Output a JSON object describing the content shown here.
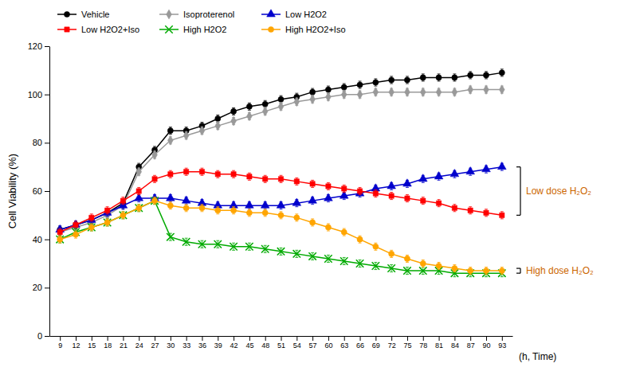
{
  "chart_data": {
    "type": "line",
    "x": [
      9,
      12,
      15,
      18,
      21,
      24,
      27,
      30,
      33,
      36,
      39,
      42,
      45,
      48,
      51,
      54,
      57,
      60,
      63,
      66,
      69,
      72,
      75,
      78,
      81,
      84,
      87,
      90,
      93
    ],
    "xlim": [
      7,
      95
    ],
    "xticks": [
      9,
      12,
      15,
      18,
      21,
      24,
      27,
      30,
      33,
      36,
      39,
      42,
      45,
      48,
      51,
      54,
      57,
      60,
      63,
      66,
      69,
      72,
      75,
      78,
      81,
      84,
      87,
      90,
      93
    ],
    "xlabel": "(h, Time)",
    "ylabel": "Cell Viability (%)",
    "ylim": [
      0,
      120
    ],
    "yticks": [
      0,
      20,
      40,
      60,
      80,
      100,
      120
    ],
    "grid": false,
    "legend": "upper left",
    "series": [
      {
        "name": "Vehicle",
        "color": "#000000",
        "marker": "circle",
        "error": 1.5,
        "values": [
          44,
          46,
          48,
          51,
          55,
          70,
          77,
          85,
          85,
          87,
          90,
          93,
          95,
          96,
          98,
          99,
          101,
          102,
          103,
          104,
          105,
          106,
          106,
          107,
          107,
          107,
          108,
          108,
          109
        ]
      },
      {
        "name": "Isoproterenol",
        "color": "#999999",
        "marker": "diamond",
        "error": 1.5,
        "values": [
          43,
          45,
          47,
          50,
          54,
          68,
          75,
          81,
          83,
          85,
          87,
          89,
          91,
          93,
          95,
          97,
          98,
          99,
          100,
          100,
          101,
          101,
          101,
          101,
          101,
          101,
          102,
          102,
          102
        ]
      },
      {
        "name": "Low H2O2",
        "color": "#0000CC",
        "marker": "triangle",
        "error": 1.5,
        "values": [
          44,
          46,
          48,
          51,
          54,
          57,
          57,
          57,
          56,
          55,
          54,
          54,
          54,
          54,
          54,
          55,
          56,
          57,
          58,
          59,
          61,
          62,
          63,
          65,
          66,
          67,
          68,
          69,
          70
        ]
      },
      {
        "name": "Low H2O2+Iso",
        "color": "#FF0000",
        "marker": "square",
        "error": 1.5,
        "values": [
          43,
          46,
          49,
          52,
          56,
          60,
          65,
          67,
          68,
          68,
          67,
          67,
          66,
          65,
          65,
          64,
          63,
          62,
          61,
          60,
          59,
          58,
          57,
          56,
          55,
          53,
          52,
          51,
          50
        ]
      },
      {
        "name": "High H2O2",
        "color": "#00AA00",
        "marker": "x",
        "error": 1.5,
        "values": [
          40,
          43,
          45,
          47,
          50,
          53,
          56,
          41,
          39,
          38,
          38,
          37,
          37,
          36,
          35,
          34,
          33,
          32,
          31,
          30,
          29,
          28,
          27,
          27,
          27,
          26,
          26,
          26,
          26
        ]
      },
      {
        "name": "High H2O2+Iso",
        "color": "#FFA500",
        "marker": "circle",
        "error": 1.5,
        "values": [
          40,
          42,
          45,
          47,
          50,
          53,
          56,
          54,
          53,
          53,
          52,
          52,
          51,
          51,
          50,
          49,
          47,
          45,
          43,
          40,
          37,
          34,
          32,
          30,
          29,
          28,
          27,
          27,
          27
        ]
      }
    ],
    "annotations": [
      {
        "text": "Low dose H₂O₂",
        "span": [
          50,
          70
        ],
        "color": "#CC6600"
      },
      {
        "text": "High dose H₂O₂",
        "span": [
          26,
          28
        ],
        "color": "#CC6600"
      }
    ]
  }
}
